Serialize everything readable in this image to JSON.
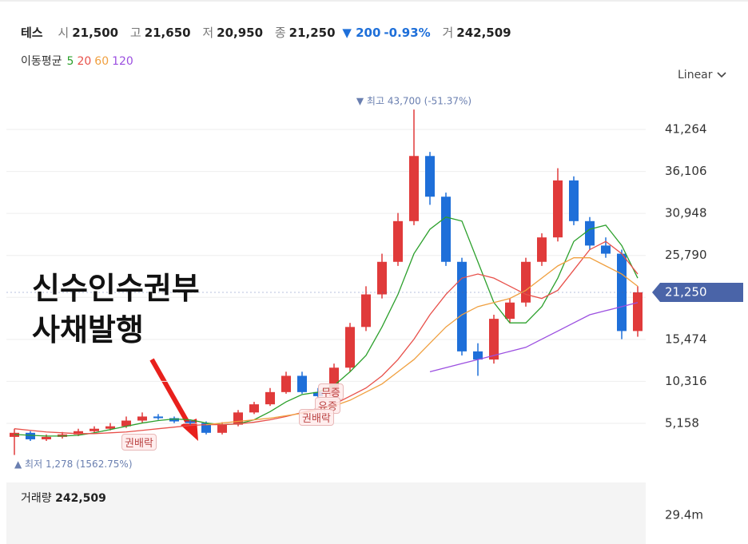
{
  "header": {
    "name": "테스",
    "open_label": "시",
    "open": "21,500",
    "high_label": "고",
    "high": "21,650",
    "low_label": "저",
    "low": "20,950",
    "close_label": "종",
    "close": "21,250",
    "change": "▼ 200",
    "change_pct": "-0.93%",
    "volume_label": "거",
    "volume": "242,509"
  },
  "ma_legend": {
    "title": "이동평균",
    "items": [
      "5",
      "20",
      "60",
      "120"
    ]
  },
  "scale_menu": "Linear",
  "annotation": [
    "신수인수권부",
    "사채발행"
  ],
  "events": [
    "무증",
    "유증",
    "권배락",
    "권배락"
  ],
  "volume_pane": {
    "title": "거래량",
    "value": "242,509",
    "tick": "29.4m"
  },
  "chart_data": {
    "type": "candlestick",
    "up_color": "#e03a3a",
    "down_color": "#1e6fd9",
    "open": [
      3500,
      4000,
      3200,
      3500,
      3800,
      4200,
      4500,
      4800,
      5500,
      6000,
      5800,
      5400,
      5200,
      4000,
      5000,
      6500,
      7500,
      9000,
      11000,
      9000,
      8500,
      12000,
      17000,
      21000,
      25000,
      30000,
      38000,
      33000,
      25000,
      14000,
      13000,
      18000,
      20000,
      25000,
      28000,
      35000,
      30000,
      27000,
      26000,
      16500
    ],
    "high": [
      4500,
      4200,
      3800,
      4100,
      4500,
      4800,
      5200,
      6000,
      6500,
      6300,
      6000,
      5600,
      5400,
      5300,
      6800,
      7800,
      9500,
      11500,
      11500,
      9500,
      12500,
      17500,
      22000,
      26000,
      31000,
      43700,
      38500,
      33500,
      25500,
      15000,
      18500,
      20500,
      25500,
      28500,
      36500,
      35500,
      30500,
      28000,
      26500,
      22000
    ],
    "low": [
      1278,
      3000,
      3000,
      3300,
      3600,
      4000,
      4300,
      4600,
      5200,
      5600,
      5200,
      5000,
      3800,
      3800,
      4800,
      6300,
      7300,
      8800,
      8800,
      8200,
      8300,
      11500,
      16500,
      20500,
      24500,
      29500,
      32000,
      24500,
      13500,
      11000,
      12500,
      17500,
      19500,
      24500,
      27500,
      29500,
      26500,
      25500,
      15500,
      15800
    ],
    "close": [
      4000,
      3200,
      3500,
      3800,
      4200,
      4500,
      4800,
      5500,
      6000,
      5800,
      5400,
      5200,
      4000,
      5000,
      6500,
      7500,
      9000,
      11000,
      9000,
      8500,
      12000,
      17000,
      21000,
      25000,
      30000,
      38000,
      33000,
      25000,
      14000,
      13000,
      18000,
      20000,
      25000,
      28000,
      35000,
      30000,
      27000,
      26000,
      16500,
      21250
    ],
    "series": [
      {
        "name": "5",
        "color": "#2ca02c",
        "values": [
          3800,
          3700,
          3600,
          3600,
          3700,
          4000,
          4400,
          4800,
          5200,
          5500,
          5700,
          5600,
          5200,
          5000,
          5100,
          5600,
          6600,
          7800,
          8700,
          9000,
          9800,
          11500,
          13500,
          17000,
          21000,
          26000,
          29000,
          30500,
          30000,
          25000,
          20000,
          17500,
          17500,
          19500,
          23000,
          27500,
          29000,
          29500,
          27000,
          23000
        ]
      },
      {
        "name": "20",
        "color": "#e8504a",
        "values": [
          4500,
          4300,
          4100,
          4000,
          3900,
          3900,
          4000,
          4100,
          4300,
          4500,
          4700,
          4900,
          5000,
          5000,
          5100,
          5300,
          5600,
          6000,
          6500,
          7000,
          7500,
          8500,
          9500,
          11000,
          13000,
          15500,
          18500,
          21000,
          23000,
          23500,
          23000,
          22000,
          21000,
          20500,
          21500,
          24000,
          26500,
          27500,
          26000,
          23500
        ]
      },
      {
        "name": "60",
        "color": "#f0a040",
        "values": [
          null,
          null,
          null,
          null,
          null,
          null,
          null,
          null,
          null,
          null,
          null,
          null,
          5000,
          5200,
          5400,
          5600,
          5800,
          6100,
          6400,
          6800,
          7300,
          8000,
          9000,
          10000,
          11500,
          13000,
          15000,
          17000,
          18500,
          19500,
          20000,
          20500,
          21500,
          23000,
          24500,
          25500,
          25500,
          24500,
          23500,
          22000
        ]
      },
      {
        "name": "120",
        "color": "#9b4fe0",
        "values": [
          null,
          null,
          null,
          null,
          null,
          null,
          null,
          null,
          null,
          null,
          null,
          null,
          null,
          null,
          null,
          null,
          null,
          null,
          null,
          null,
          null,
          null,
          null,
          null,
          null,
          null,
          11500,
          12000,
          12500,
          13000,
          13500,
          14000,
          14500,
          15500,
          16500,
          17500,
          18500,
          19000,
          19500,
          20000
        ]
      }
    ],
    "max_label": "▼ 최고 43,700 (-51.37%)",
    "min_label": "▲ 최저 1,278 (1562.75%)",
    "last_price": 21250,
    "last_price_label": "21,250",
    "ylim": [
      743,
      45385
    ],
    "yticks": [
      {
        "value": 5158,
        "label": "5,158"
      },
      {
        "value": 10316,
        "label": "10,316"
      },
      {
        "value": 15474,
        "label": "15,474"
      },
      {
        "value": 20632,
        "label": ""
      },
      {
        "value": 25790,
        "label": "25,790"
      },
      {
        "value": 30948,
        "label": "30,948"
      },
      {
        "value": 36106,
        "label": "36,106"
      },
      {
        "value": 41264,
        "label": "41,264"
      }
    ],
    "grid": true
  }
}
